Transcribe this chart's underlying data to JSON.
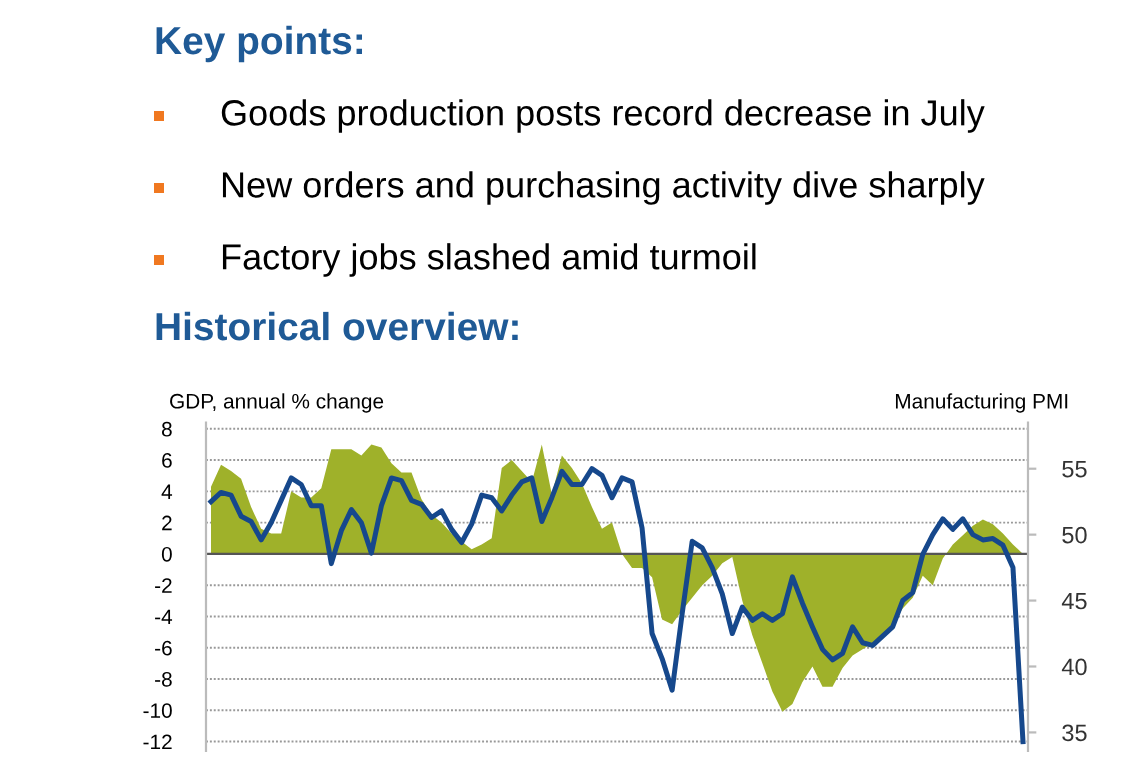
{
  "chart_data": {
    "type": "area",
    "title": "Key points:",
    "subtitle": "Historical overview:",
    "annotations": [
      "Goods production posts record decrease in July",
      "New orders and purchasing activity dive sharply",
      "Factory jobs slashed amid turmoil"
    ],
    "ylabel": "GDP, annual % change",
    "y2label": "Manufacturing PMI",
    "categories": [
      null,
      null,
      null,
      null,
      null,
      null,
      null,
      null,
      null,
      null,
      null,
      null,
      null,
      null,
      null,
      null,
      null,
      null,
      null,
      null,
      null,
      null,
      null,
      null,
      null,
      null,
      null,
      null,
      null,
      null,
      null,
      null,
      null,
      null,
      null,
      null,
      null,
      null,
      null,
      null,
      null,
      null,
      null,
      null,
      null,
      null,
      null,
      null,
      null,
      null,
      null,
      null,
      null,
      null,
      null,
      null,
      null,
      null,
      null,
      null,
      null,
      null,
      null,
      null,
      null,
      null,
      null,
      null,
      null,
      null,
      null,
      null,
      null,
      null,
      null,
      null,
      null,
      null,
      null,
      null,
      null,
      null
    ],
    "series": [
      {
        "type": "area",
        "color": "#9fb12a",
        "values": [
          4.3,
          5.7,
          5.3,
          4.8,
          3.0,
          1.6,
          1.3,
          1.3,
          4.0,
          3.6,
          3.6,
          4.2,
          6.7,
          6.7,
          6.7,
          6.3,
          7.0,
          6.8,
          5.8,
          5.2,
          5.2,
          3.5,
          2.5,
          2.0,
          1.3,
          0.8,
          0.3,
          0.6,
          1.0,
          5.5,
          6.0,
          5.3,
          4.6,
          7.0,
          3.8,
          6.3,
          5.5,
          4.5,
          3.0,
          1.6,
          2.0,
          0,
          -0.9,
          -0.9,
          -1.5,
          -4.2,
          -4.5,
          -3.6,
          -2.8,
          -2.0,
          -1.4,
          -0.6,
          -0.2,
          -3.0,
          -5.2,
          -7.0,
          -8.8,
          -10.1,
          -9.6,
          -8.2,
          -7.2,
          -8.5,
          -8.5,
          -7.3,
          -6.5,
          -6.1,
          -5.7,
          -5.2,
          -4.5,
          -3.5,
          -2.8,
          -1.4,
          -2.0,
          -0.3,
          0.6,
          1.2,
          1.8,
          2.2,
          1.9,
          1.3,
          0.6,
          0
        ]
      },
      {
        "type": "line",
        "axis": "y2",
        "color": "#16488c",
        "values": [
          52.5,
          53.2,
          53.0,
          51.4,
          51.0,
          49.6,
          50.9,
          52.6,
          54.3,
          53.8,
          52.2,
          52.2,
          47.8,
          50.3,
          51.9,
          50.9,
          48.6,
          52.2,
          54.3,
          54.1,
          52.6,
          52.3,
          51.3,
          51.8,
          50.4,
          49.4,
          50.8,
          53.0,
          52.8,
          51.8,
          53.0,
          54.0,
          54.3,
          51.0,
          52.8,
          54.8,
          53.8,
          53.8,
          55.0,
          54.5,
          52.8,
          54.3,
          54.0,
          50.5,
          42.5,
          40.6,
          38.2,
          44.0,
          49.5,
          49.0,
          47.5,
          45.5,
          42.5,
          44.5,
          43.5,
          44.0,
          43.5,
          44.0,
          46.8,
          44.8,
          43.0,
          41.3,
          40.5,
          41.0,
          43.0,
          41.8,
          41.6,
          42.3,
          43.0,
          45.0,
          45.6,
          48.5,
          50.0,
          51.2,
          50.4,
          51.2,
          50.0,
          49.6,
          49.7,
          49.2,
          47.5,
          34.3
        ]
      }
    ],
    "ylim": [
      -12.6,
      8.4
    ],
    "yticks": [
      8,
      6,
      4,
      2,
      0,
      -2,
      -4,
      -6,
      -8,
      -10,
      -12
    ],
    "y2lim": [
      33.6,
      58.5
    ],
    "y2ticks": [
      35,
      40,
      45,
      50,
      55
    ],
    "grid": "y",
    "tick_labels": "y"
  }
}
